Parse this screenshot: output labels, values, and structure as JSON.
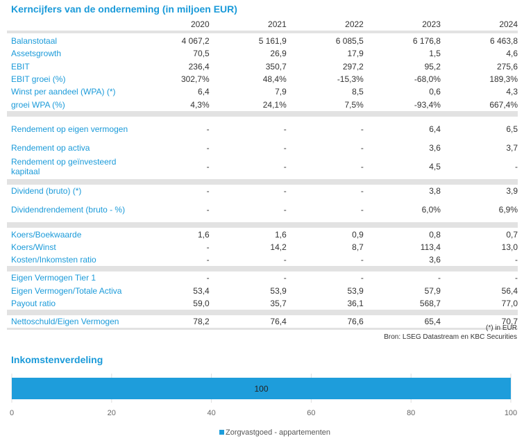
{
  "table": {
    "title": "Kerncijfers van de onderneming (in miljoen EUR)",
    "years": [
      "2020",
      "2021",
      "2022",
      "2023",
      "2024"
    ],
    "groups": [
      [
        {
          "label": "Balanstotaal",
          "values": [
            "4 067,2",
            "5 161,9",
            "6 085,5",
            "6 176,8",
            "6 463,8"
          ]
        },
        {
          "label": "Assetsgrowth",
          "values": [
            "70,5",
            "26,9",
            "17,9",
            "1,5",
            "4,6"
          ]
        },
        {
          "label": "EBIT",
          "values": [
            "236,4",
            "350,7",
            "297,2",
            "95,2",
            "275,6"
          ]
        },
        {
          "label": "EBIT groei (%)",
          "values": [
            "302,7%",
            "48,4%",
            "-15,3%",
            "-68,0%",
            "189,3%"
          ]
        },
        {
          "label": "Winst per aandeel (WPA) (*)",
          "values": [
            "6,4",
            "7,9",
            "8,5",
            "0,6",
            "4,3"
          ]
        },
        {
          "label": "groei WPA (%)",
          "values": [
            "4,3%",
            "24,1%",
            "7,5%",
            "-93,4%",
            "667,4%"
          ]
        }
      ],
      [
        {
          "label": "Rendement op eigen vermogen",
          "values": [
            "-",
            "-",
            "-",
            "6,4",
            "6,5"
          ],
          "tall": true
        },
        {
          "label": "Rendement op activa",
          "values": [
            "-",
            "-",
            "-",
            "3,6",
            "3,7"
          ]
        },
        {
          "label": "Rendement op geïnvesteerd kapitaal",
          "values": [
            "-",
            "-",
            "-",
            "4,5",
            "-"
          ],
          "tall": true
        }
      ],
      [
        {
          "label": "Dividend (bruto) (*)",
          "values": [
            "-",
            "-",
            "-",
            "3,8",
            "3,9"
          ]
        },
        {
          "label": "Dividendrendement (bruto - %)",
          "values": [
            "-",
            "-",
            "-",
            "6,0%",
            "6,9%"
          ],
          "tall": true
        }
      ],
      [
        {
          "label": "Koers/Boekwaarde",
          "values": [
            "1,6",
            "1,6",
            "0,9",
            "0,8",
            "0,7"
          ]
        },
        {
          "label": "Koers/Winst",
          "values": [
            "-",
            "14,2",
            "8,7",
            "113,4",
            "13,0"
          ]
        },
        {
          "label": "Kosten/Inkomsten ratio",
          "values": [
            "-",
            "-",
            "-",
            "3,6",
            "-"
          ]
        }
      ],
      [
        {
          "label": "Eigen Vermogen Tier 1",
          "values": [
            "-",
            "-",
            "-",
            "-",
            "-"
          ]
        },
        {
          "label": "Eigen Vermogen/Totale Activa",
          "values": [
            "53,4",
            "53,9",
            "53,9",
            "57,9",
            "56,4"
          ]
        },
        {
          "label": "Payout ratio",
          "values": [
            "59,0",
            "35,7",
            "36,1",
            "568,7",
            "77,0"
          ]
        }
      ],
      [
        {
          "label": "Nettoschuld/Eigen Vermogen",
          "values": [
            "78,2",
            "76,4",
            "76,6",
            "65,4",
            "70,7"
          ]
        }
      ]
    ],
    "note": "(*) in EUR",
    "source": "Bron: LSEG Datastream en KBC Securities"
  },
  "chart_data": {
    "type": "bar",
    "orientation": "horizontal",
    "stacked": true,
    "title": "Inkomstenverdeling",
    "series": [
      {
        "name": "Zorgvastgoed - appartementen",
        "values": [
          100
        ],
        "color": "#1e9ddb"
      }
    ],
    "data_labels": [
      "100"
    ],
    "xlim": [
      0,
      100
    ],
    "xticks": [
      "0",
      "20",
      "40",
      "60",
      "80",
      "100"
    ],
    "grid": true,
    "legend": "bottom"
  }
}
